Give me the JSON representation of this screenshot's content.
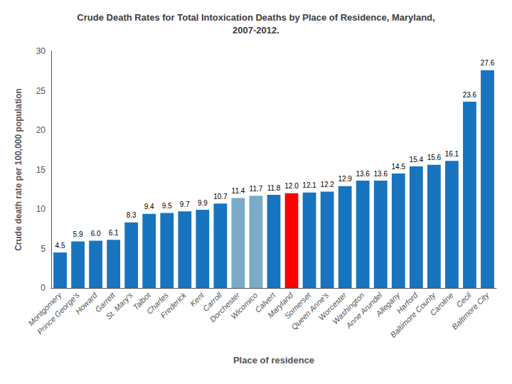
{
  "chart_data": {
    "type": "bar",
    "title": "Crude Death Rates for Total Intoxication Deaths by Place of Residence, Maryland,\n2007-2012.",
    "xlabel": "Place of residence",
    "ylabel": "Crude death rate per 100,000 population",
    "categories": [
      "Montgomery",
      "Prince George's",
      "Howard",
      "Garrett",
      "St. Mary's",
      "Talbot",
      "Charles",
      "Frederick",
      "Kent",
      "Carroll",
      "Dorchester",
      "Wicomico",
      "Calvert",
      "Maryland",
      "Somerset",
      "Queen Anne's",
      "Worcester",
      "Washington",
      "Anne Arundel",
      "Allegany",
      "Harford",
      "Baltimore County",
      "Caroline",
      "Cecil",
      "Baltimore City"
    ],
    "values": [
      4.5,
      5.9,
      6.0,
      6.1,
      8.3,
      9.4,
      9.5,
      9.7,
      9.9,
      10.7,
      11.4,
      11.7,
      11.8,
      12.0,
      12.1,
      12.2,
      12.9,
      13.6,
      13.6,
      14.5,
      15.4,
      15.6,
      16.1,
      23.6,
      27.6
    ],
    "value_labels": [
      "4.5",
      "5.9",
      "6.0",
      "6.1",
      "8.3",
      "9.4",
      "9.5",
      "9.7",
      "9.9",
      "10.7",
      "11.4",
      "11.7",
      "11.8",
      "12.0",
      "12.1",
      "12.2",
      "12.9",
      "13.6",
      "13.6",
      "14.5",
      "15.4",
      "15.6",
      "16.1",
      "23.6",
      "27.6"
    ],
    "colors": [
      "#1874BE",
      "#1874BE",
      "#1874BE",
      "#1874BE",
      "#1874BE",
      "#1874BE",
      "#1874BE",
      "#1874BE",
      "#1874BE",
      "#1874BE",
      "#7AABC8",
      "#7AABC8",
      "#1874BE",
      "#FF0000",
      "#1874BE",
      "#1874BE",
      "#1874BE",
      "#1874BE",
      "#1874BE",
      "#1874BE",
      "#1874BE",
      "#1874BE",
      "#1874BE",
      "#1874BE",
      "#1874BE"
    ],
    "ylim": [
      0,
      30
    ],
    "yticks": [
      0,
      5,
      10,
      15,
      20,
      25,
      30
    ],
    "grid": false,
    "data_labels": true
  }
}
